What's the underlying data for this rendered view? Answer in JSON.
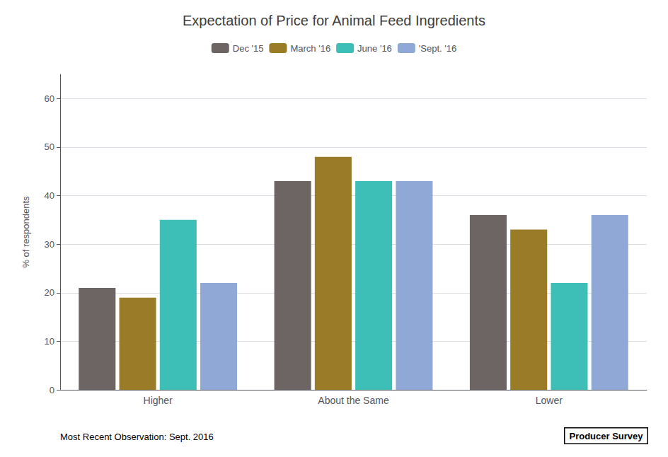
{
  "chart_data": {
    "type": "bar",
    "title": "Expectation of Price for Animal Feed Ingredients",
    "categories": [
      "Higher",
      "About the Same",
      "Lower"
    ],
    "series": [
      {
        "name": "Dec '15",
        "color": "#6d6464",
        "values": [
          21,
          43,
          36
        ]
      },
      {
        "name": "March '16",
        "color": "#9a7b28",
        "values": [
          19,
          48,
          33
        ]
      },
      {
        "name": "June '16",
        "color": "#3dbfb8",
        "values": [
          35,
          43,
          22
        ]
      },
      {
        "name": "'Sept. '16",
        "color": "#8fa8d5",
        "values": [
          22,
          43,
          36
        ]
      }
    ],
    "ylabel": "% of respondents",
    "ylim": [
      0,
      65
    ],
    "yticks": [
      0,
      10,
      20,
      30,
      40,
      50,
      60
    ],
    "grid": true,
    "legend": "top",
    "annotations": [
      "Most Recent Observation: Sept. 2016",
      "Producer Survey"
    ]
  }
}
